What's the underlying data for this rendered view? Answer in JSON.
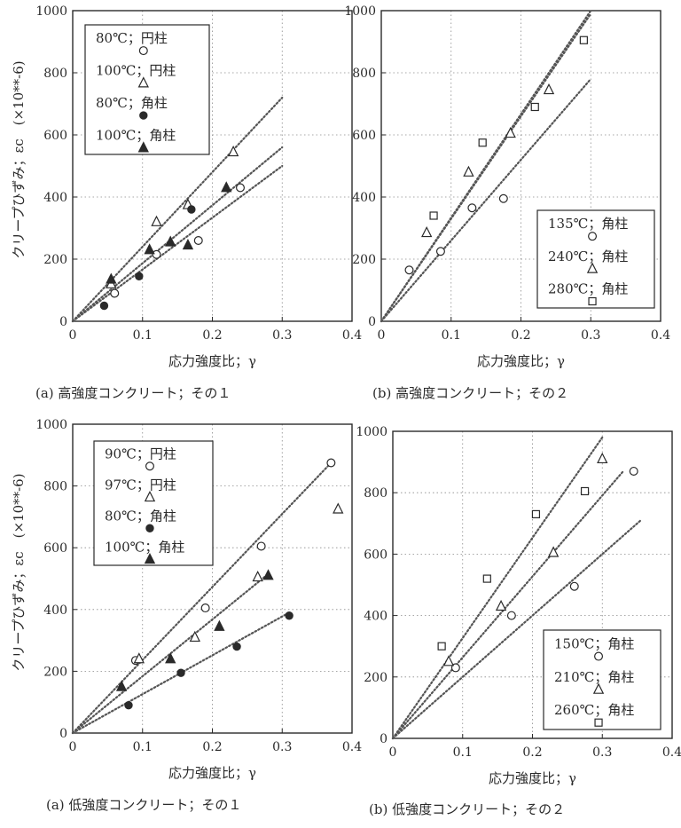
{
  "chart_data": [
    {
      "type": "scatter",
      "panel": "a",
      "caption": "(a) 高強度コンクリート；その１",
      "xlabel": "応力強度比；γ",
      "ylabel": "クリープひずみ；εc　(×10**-6)",
      "xlim": [
        0,
        0.4
      ],
      "ylim": [
        0,
        1000
      ],
      "xticks": [
        "0",
        "0.1",
        "0.2",
        "0.3",
        "0.4"
      ],
      "yticks": [
        "0",
        "200",
        "400",
        "600",
        "800",
        "1000"
      ],
      "legend_position": "top-left",
      "series": [
        {
          "name": "80℃；円柱",
          "marker": "circle-open",
          "points": [
            [
              0.06,
              90
            ],
            [
              0.12,
              215
            ],
            [
              0.18,
              260
            ],
            [
              0.24,
              430
            ]
          ]
        },
        {
          "name": "100℃；円柱",
          "marker": "triangle-open",
          "points": [
            [
              0.055,
              120
            ],
            [
              0.12,
              320
            ],
            [
              0.165,
              375
            ],
            [
              0.23,
              545
            ]
          ]
        },
        {
          "name": "80℃；角柱",
          "marker": "circle-filled",
          "points": [
            [
              0.045,
              50
            ],
            [
              0.095,
              145
            ],
            [
              0.17,
              360
            ]
          ]
        },
        {
          "name": "100℃；角柱",
          "marker": "triangle-filled",
          "points": [
            [
              0.055,
              135
            ],
            [
              0.11,
              230
            ],
            [
              0.14,
              255
            ],
            [
              0.165,
              245
            ],
            [
              0.22,
              430
            ]
          ]
        }
      ],
      "fit_lines": [
        {
          "from": [
            0,
            0
          ],
          "to": [
            0.3,
            720
          ]
        },
        {
          "from": [
            0,
            0
          ],
          "to": [
            0.3,
            560
          ]
        },
        {
          "from": [
            0,
            0
          ],
          "to": [
            0.3,
            500
          ]
        }
      ]
    },
    {
      "type": "scatter",
      "panel": "b",
      "caption": "(b) 高強度コンクリート；その２",
      "xlabel": "応力強度比；γ",
      "xlim": [
        0,
        0.4
      ],
      "ylim": [
        0,
        1000
      ],
      "xticks": [
        "0",
        "0.1",
        "0.2",
        "0.3",
        "0.4"
      ],
      "yticks": [
        "0",
        "200",
        "400",
        "600",
        "800",
        "1000"
      ],
      "legend_position": "bottom-right",
      "series": [
        {
          "name": "135℃；角柱",
          "marker": "circle-open",
          "points": [
            [
              0.04,
              165
            ],
            [
              0.085,
              225
            ],
            [
              0.13,
              365
            ],
            [
              0.175,
              395
            ]
          ]
        },
        {
          "name": "240℃；角柱",
          "marker": "triangle-open",
          "points": [
            [
              0.065,
              285
            ],
            [
              0.125,
              480
            ],
            [
              0.185,
              605
            ],
            [
              0.24,
              745
            ]
          ]
        },
        {
          "name": "280℃；角柱",
          "marker": "square-open",
          "points": [
            [
              0.075,
              340
            ],
            [
              0.145,
              575
            ],
            [
              0.22,
              690
            ],
            [
              0.29,
              905
            ]
          ]
        }
      ],
      "fit_lines": [
        {
          "from": [
            0,
            0
          ],
          "to": [
            0.3,
            1000
          ]
        },
        {
          "from": [
            0,
            0
          ],
          "to": [
            0.3,
            990
          ]
        },
        {
          "from": [
            0,
            0
          ],
          "to": [
            0.3,
            780
          ]
        }
      ]
    },
    {
      "type": "scatter",
      "panel": "c",
      "caption": "(a) 低強度コンクリート；その１",
      "xlabel": "応力強度比；γ",
      "ylabel": "クリープひずみ；εc　(×10**-6)",
      "xlim": [
        0,
        0.4
      ],
      "ylim": [
        0,
        1000
      ],
      "xticks": [
        "0",
        "0.1",
        "0.2",
        "0.3",
        "0.4"
      ],
      "yticks": [
        "0",
        "200",
        "400",
        "600",
        "800",
        "1000"
      ],
      "legend_position": "top-right",
      "series": [
        {
          "name": "90℃；円柱",
          "marker": "circle-open",
          "points": [
            [
              0.09,
              235
            ],
            [
              0.19,
              405
            ],
            [
              0.27,
              605
            ],
            [
              0.37,
              875
            ]
          ]
        },
        {
          "name": "97℃；円柱",
          "marker": "triangle-open",
          "points": [
            [
              0.095,
              240
            ],
            [
              0.175,
              310
            ],
            [
              0.265,
              505
            ],
            [
              0.38,
              725
            ]
          ]
        },
        {
          "name": "80℃；角柱",
          "marker": "circle-filled",
          "points": [
            [
              0.08,
              90
            ],
            [
              0.155,
              195
            ],
            [
              0.235,
              280
            ],
            [
              0.31,
              380
            ]
          ]
        },
        {
          "name": "100℃；角柱",
          "marker": "triangle-filled",
          "points": [
            [
              0.07,
              150
            ],
            [
              0.14,
              240
            ],
            [
              0.21,
              345
            ],
            [
              0.28,
              510
            ]
          ]
        }
      ],
      "fit_lines": [
        {
          "from": [
            0,
            0
          ],
          "to": [
            0.37,
            875
          ]
        },
        {
          "from": [
            0,
            0
          ],
          "to": [
            0.28,
            515
          ]
        },
        {
          "from": [
            0,
            0
          ],
          "to": [
            0.31,
            390
          ]
        }
      ]
    },
    {
      "type": "scatter",
      "panel": "d",
      "caption": "(b) 低強度コンクリート；その２",
      "xlabel": "応力強度比；γ",
      "xlim": [
        0,
        0.4
      ],
      "ylim": [
        0,
        1000
      ],
      "xticks": [
        "0",
        "0.1",
        "0.2",
        "0.3",
        "0.4"
      ],
      "yticks": [
        "0",
        "200",
        "400",
        "600",
        "800",
        "1000"
      ],
      "legend_position": "bottom-right",
      "series": [
        {
          "name": "150℃；角柱",
          "marker": "circle-open",
          "points": [
            [
              0.09,
              230
            ],
            [
              0.17,
              400
            ],
            [
              0.26,
              495
            ],
            [
              0.345,
              870
            ]
          ]
        },
        {
          "name": "210℃；角柱",
          "marker": "triangle-open",
          "points": [
            [
              0.08,
              250
            ],
            [
              0.155,
              430
            ],
            [
              0.23,
              605
            ],
            [
              0.3,
              910
            ]
          ]
        },
        {
          "name": "260℃；角柱",
          "marker": "square-open",
          "points": [
            [
              0.07,
              300
            ],
            [
              0.135,
              520
            ],
            [
              0.205,
              730
            ],
            [
              0.275,
              805
            ]
          ]
        }
      ],
      "fit_lines": [
        {
          "from": [
            0,
            0
          ],
          "to": [
            0.3,
            980
          ]
        },
        {
          "from": [
            0,
            0
          ],
          "to": [
            0.33,
            870
          ]
        },
        {
          "from": [
            0,
            0
          ],
          "to": [
            0.355,
            710
          ]
        }
      ]
    }
  ]
}
